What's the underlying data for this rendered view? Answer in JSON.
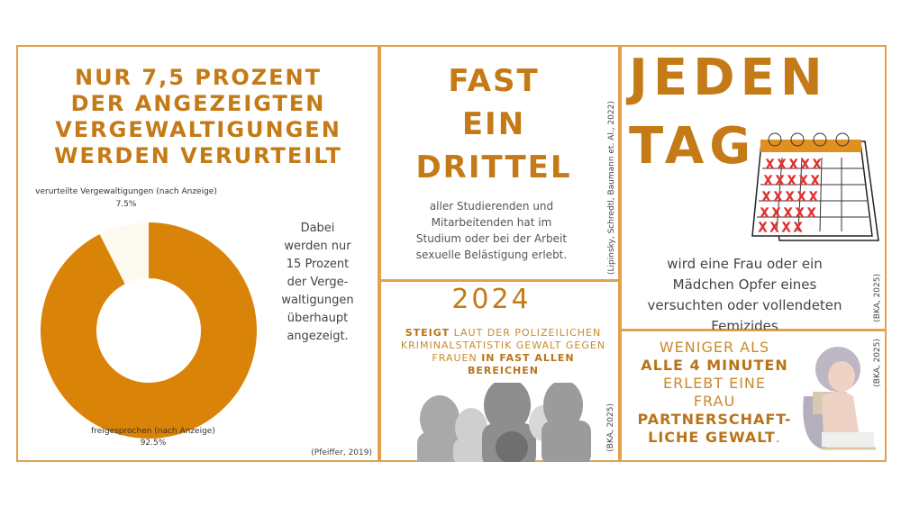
{
  "left": {
    "title": "NUR 7,5 PROZENT DER ANGEZEIGTEN VERGEWALTIGUNGEN WERDEN VERURTEILT",
    "side_text": "Dabei werden nur 15 Prozent der Verge-waltigungen überhaupt angezeigt.",
    "source": "(Pfeiffer, 2019)"
  },
  "chart_data": {
    "type": "pie",
    "donut": true,
    "slices": [
      {
        "label": "verurteilte Vergewaltigungen (nach Anzeige)",
        "value": 7.5,
        "display": "7.5%",
        "color": "#fdfbf0"
      },
      {
        "label": "freigesprochen (nach Anzeige)",
        "value": 92.5,
        "display": "92.5%",
        "color": "#d98309"
      }
    ]
  },
  "mid_top": {
    "title": [
      "FAST",
      "EIN",
      "DRITTEL"
    ],
    "text": "aller Studierenden und Mitarbeitenden hat im Studium oder bei der Arbeit sexuelle Belästigung erlebt.",
    "source": "(Lipinsky, Schredtl, Baumann et. Al., 2022)"
  },
  "mid_bottom": {
    "year": "2024",
    "t1": "STEIGT",
    "t2": " LAUT DER POLIZEILICHEN KRIMINALSTATISTIK GEWALT GEGEN FRAUEN ",
    "t3": "IN FAST ALLEN BEREICHEN",
    "source": "(BKA, 2025)"
  },
  "right_top": {
    "title1": "JEDEN",
    "title2": "TAG",
    "text": "wird eine Frau oder ein Mädchen Opfer eines versuchten oder vollendeten Femizides",
    "source": "(BKA, 2025)"
  },
  "right_bottom": {
    "l1": "WENIGER ALS",
    "l2": "ALLE 4 MINUTEN",
    "l3": "ERLEBT EINE",
    "l4": "FRAU",
    "l5": "PARTNERSCHAFT-",
    "l6": "LICHE GEWALT",
    "l7": ".",
    "source": "(BKA, 2025)"
  },
  "colors": {
    "accent": "#c47a16",
    "border": "#e3a04e"
  }
}
